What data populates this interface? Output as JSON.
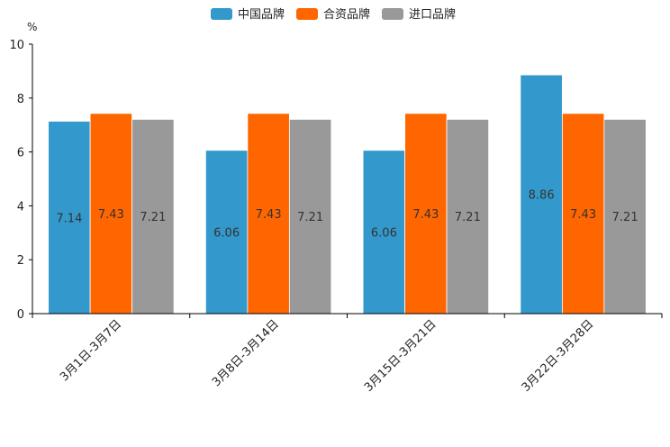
{
  "chart_data": {
    "type": "bar",
    "title": "",
    "xlabel": "",
    "ylabel": "%",
    "ylim": [
      0,
      10
    ],
    "yticks": [
      0,
      2,
      4,
      6,
      8,
      10
    ],
    "grid": false,
    "legend_position": "top-center",
    "categories": [
      "3月1日-3月7日",
      "3月8日-3月14日",
      "3月15日-3月21日",
      "3月22日-3月28日"
    ],
    "series": [
      {
        "name": "中国品牌",
        "color": "#3399CC",
        "values": [
          7.14,
          6.06,
          6.06,
          8.86
        ],
        "labels": [
          "7.14",
          "6.06",
          "6.06",
          "8.86"
        ]
      },
      {
        "name": "合资品牌",
        "color": "#FF6600",
        "values": [
          7.43,
          7.43,
          7.43,
          7.43
        ],
        "labels": [
          "7.43",
          "7.43",
          "7.43",
          "7.43"
        ]
      },
      {
        "name": "进口品牌",
        "color": "#999999",
        "values": [
          7.21,
          7.21,
          7.21,
          7.21
        ],
        "labels": [
          "7.21",
          "7.21",
          "7.21",
          "7.21"
        ]
      }
    ]
  }
}
